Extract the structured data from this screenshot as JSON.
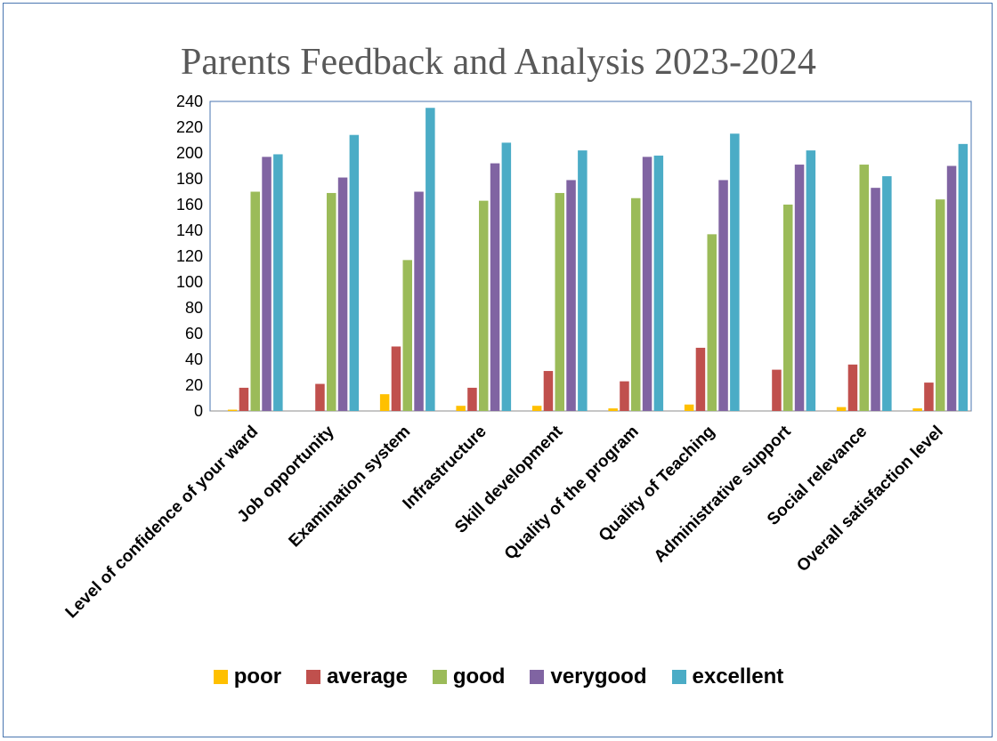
{
  "chart_data": {
    "type": "bar",
    "title": "Parents Feedback and Analysis 2023-2024",
    "xlabel": "",
    "ylabel": "",
    "ylim": [
      0,
      240
    ],
    "y_ticks": [
      0,
      20,
      40,
      60,
      80,
      100,
      120,
      140,
      160,
      180,
      200,
      220,
      240
    ],
    "grid": false,
    "legend_position": "bottom",
    "categories": [
      "Level of confidence of your ward",
      "Job opportunity",
      "Examination system",
      "Infrastructure",
      "Skill development",
      "Quality of the program",
      "Quality of Teaching",
      "Administrative support",
      "Social relevance",
      "Overall satisfaction level"
    ],
    "series": [
      {
        "name": "poor",
        "color": "#FFC000",
        "values": [
          1,
          0,
          13,
          4,
          4,
          2,
          5,
          0,
          3,
          2
        ]
      },
      {
        "name": "average",
        "color": "#C0504D",
        "values": [
          18,
          21,
          50,
          18,
          31,
          23,
          49,
          32,
          36,
          22
        ]
      },
      {
        "name": "good",
        "color": "#9BBB59",
        "values": [
          170,
          169,
          117,
          163,
          169,
          165,
          137,
          160,
          191,
          164
        ]
      },
      {
        "name": "verygood",
        "color": "#8064A2",
        "values": [
          197,
          181,
          170,
          192,
          179,
          197,
          179,
          191,
          173,
          190
        ]
      },
      {
        "name": "excellent",
        "color": "#4BACC6",
        "values": [
          199,
          214,
          235,
          208,
          202,
          198,
          215,
          202,
          182,
          207
        ]
      }
    ]
  }
}
